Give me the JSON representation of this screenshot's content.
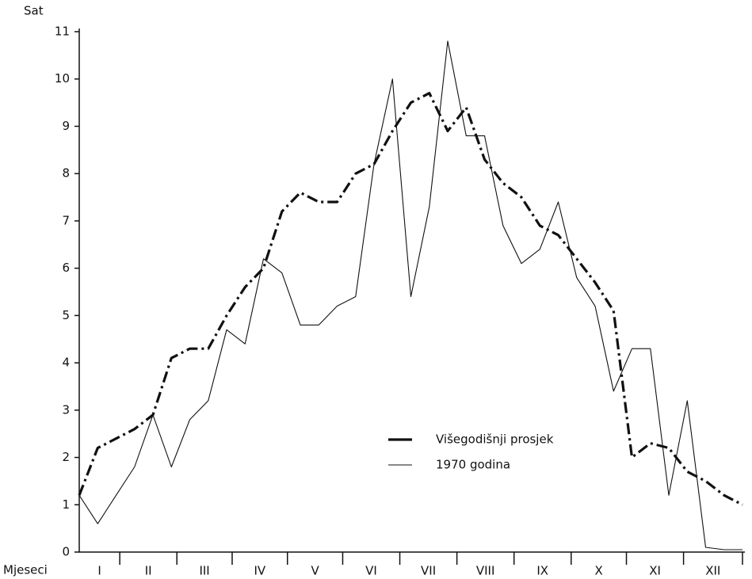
{
  "chart_data": {
    "type": "line",
    "y_label": "Sat",
    "x_label": "Mjeseci",
    "x": [
      0,
      1,
      2,
      3,
      4,
      5,
      6,
      7,
      8,
      9,
      10,
      11,
      12,
      13,
      14,
      15,
      16,
      17,
      18,
      19,
      20,
      21,
      22,
      23,
      24,
      25,
      26,
      27,
      28,
      29,
      30,
      31,
      32,
      33,
      34,
      35,
      36
    ],
    "xlim": [
      0,
      36
    ],
    "xticks": [
      2.2,
      5.3,
      8.3,
      11.3,
      14.3,
      17.4,
      20.5,
      23.6,
      26.7,
      29.7,
      32.8,
      36
    ],
    "months": [
      "I",
      "II",
      "III",
      "IV",
      "V",
      "VI",
      "VII",
      "VIII",
      "IX",
      "X",
      "XI",
      "XII"
    ],
    "ylim": [
      0,
      11
    ],
    "yticks": [
      0,
      1,
      2,
      3,
      4,
      5,
      6,
      7,
      8,
      9,
      10,
      11
    ],
    "series": [
      {
        "name": "Višegodišnji prosjek",
        "color": "#111111",
        "style": "dash-dot-thick",
        "values": [
          1.2,
          2.2,
          2.4,
          2.6,
          2.9,
          4.1,
          4.3,
          4.3,
          5.0,
          5.6,
          6.0,
          7.2,
          7.6,
          7.4,
          7.4,
          8.0,
          8.2,
          8.9,
          9.5,
          9.7,
          8.9,
          9.4,
          8.3,
          7.8,
          7.5,
          6.9,
          6.7,
          6.2,
          5.7,
          5.1,
          2.0,
          2.3,
          2.2,
          1.7,
          1.5,
          1.2,
          1.0
        ]
      },
      {
        "name": "1970 godina",
        "color": "#111111",
        "style": "thin",
        "values": [
          1.2,
          0.6,
          1.2,
          1.8,
          2.9,
          1.8,
          2.8,
          3.2,
          4.7,
          4.4,
          6.2,
          5.9,
          4.8,
          4.8,
          5.2,
          5.4,
          8.2,
          10.0,
          5.4,
          7.3,
          10.8,
          8.8,
          8.8,
          6.9,
          6.1,
          6.4,
          7.4,
          5.8,
          5.2,
          3.4,
          4.3,
          4.3,
          1.2,
          3.2,
          0.1,
          0.05,
          0.05
        ]
      }
    ]
  }
}
